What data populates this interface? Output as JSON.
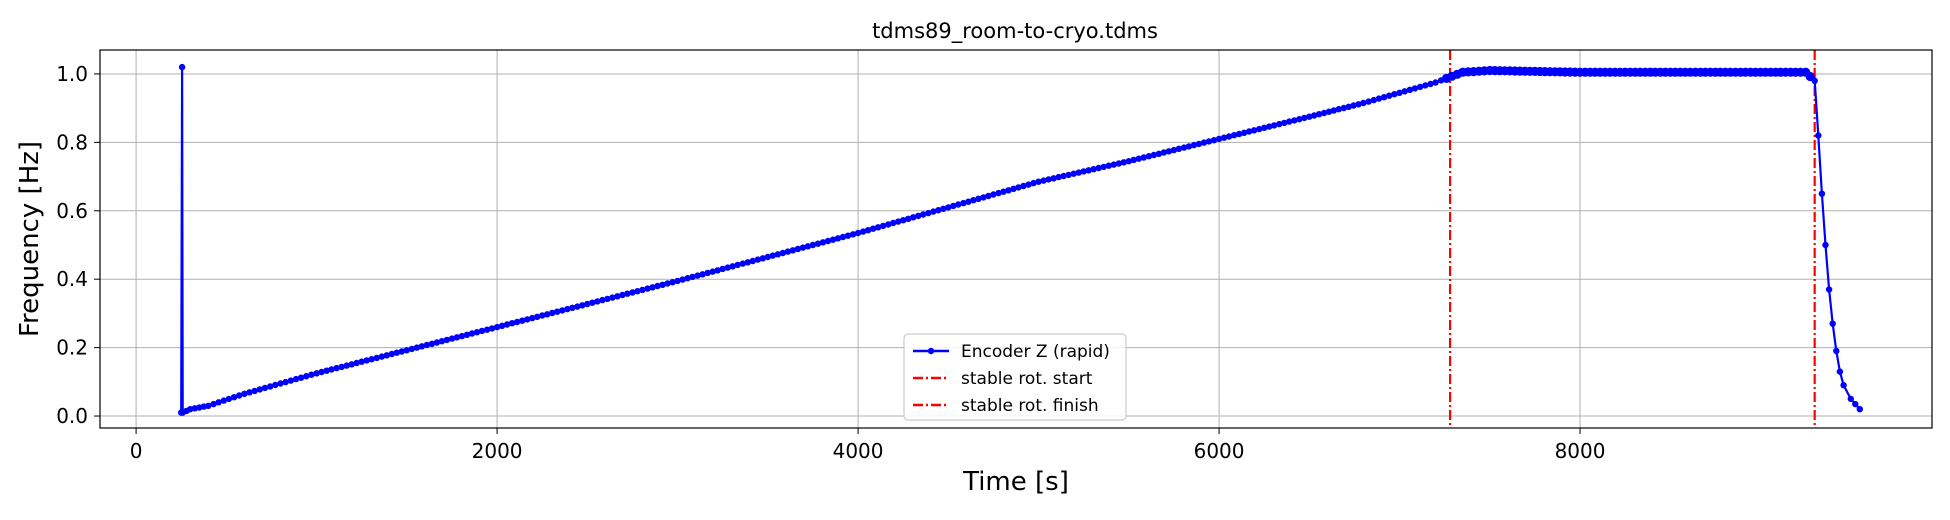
{
  "chart_data": {
    "type": "line",
    "title": "tdms89_room-to-cryo.tdms",
    "xlabel": "Time [s]",
    "ylabel": "Frequency [Hz]",
    "xlim": [
      -200,
      9950
    ],
    "ylim": [
      -0.035,
      1.07
    ],
    "xticks": [
      0,
      2000,
      4000,
      6000,
      8000
    ],
    "xtick_labels": [
      "0",
      "2000",
      "4000",
      "6000",
      "8000"
    ],
    "yticks": [
      0.0,
      0.2,
      0.4,
      0.6,
      0.8,
      1.0
    ],
    "ytick_labels": [
      "0.0",
      "0.2",
      "0.4",
      "0.6",
      "0.8",
      "1.0"
    ],
    "grid": true,
    "legend_position": "bottom-center",
    "series": [
      {
        "name": "Encoder Z (rapid)",
        "color": "#0000ff",
        "style": "line-with-dot-markers",
        "x": [
          250,
          255,
          258,
          300,
          400,
          600,
          1000,
          2000,
          3000,
          4000,
          5000,
          5500,
          6000,
          6500,
          6800,
          7000,
          7200,
          7350,
          7500,
          8000,
          8500,
          9000,
          9250,
          9300,
          9320,
          9340,
          9360,
          9380,
          9400,
          9420,
          9440,
          9460,
          9500,
          9550
        ],
        "y": [
          0.01,
          1.02,
          0.01,
          0.02,
          0.03,
          0.065,
          0.125,
          0.26,
          0.395,
          0.535,
          0.685,
          0.745,
          0.81,
          0.875,
          0.915,
          0.945,
          0.975,
          1.005,
          1.01,
          1.005,
          1.005,
          1.005,
          1.005,
          0.98,
          0.82,
          0.65,
          0.5,
          0.37,
          0.27,
          0.19,
          0.13,
          0.09,
          0.05,
          0.02
        ]
      }
    ],
    "vlines": [
      {
        "name": "stable rot. start",
        "x": 7280,
        "color": "#ff0000",
        "style": "dash-dot"
      },
      {
        "name": "stable rot. finish",
        "x": 9300,
        "color": "#ff0000",
        "style": "dash-dot"
      }
    ]
  }
}
